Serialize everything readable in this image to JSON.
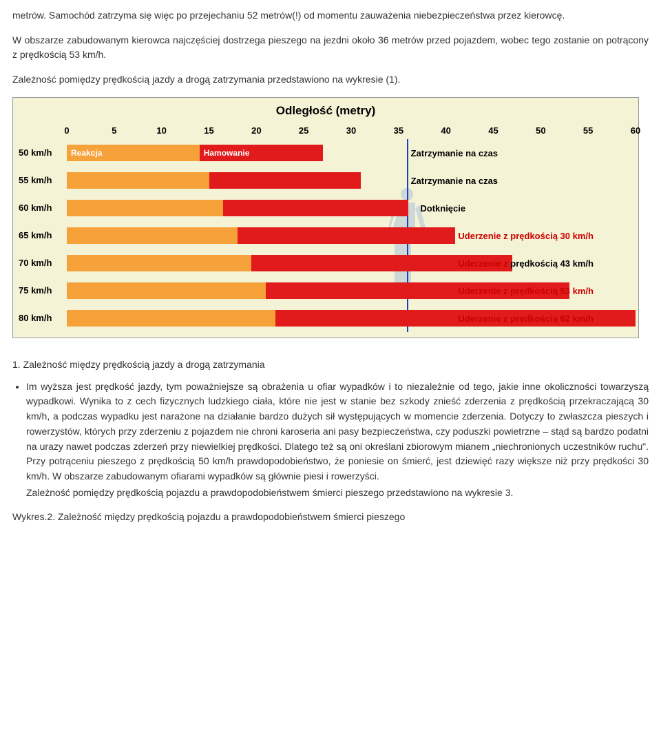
{
  "intro": {
    "p1": "metrów. Samochód zatrzyma się więc po przejechaniu 52 metrów(!) od momentu zauważenia niebezpieczeństwa przez kierowcę.",
    "p2": "W obszarze zabudowanym kierowca najczęściej dostrzega pieszego na jezdni około 36 metrów przed pojazdem, wobec tego zostanie on potrącony z prędkością 53 km/h.",
    "p3": "Zależność pomiędzy prędkością jazdy a drogą zatrzymania przedstawiono na  wykresie (1)."
  },
  "chart": {
    "title": "Odległość (metry)",
    "background_color": "#f5f3d6",
    "reaction_color": "#f7a13a",
    "brake_color": "#e11b1b",
    "safe_text_color": "#000000",
    "hit_text_color": "#cc0000",
    "pedestrian_color": "#9fb8d8",
    "vline_color": "#1a3fbf",
    "x_min": 0,
    "x_max": 60,
    "x_ticks": [
      0,
      5,
      10,
      15,
      20,
      25,
      30,
      35,
      40,
      45,
      50,
      55,
      60
    ],
    "pedestrian_x": 36,
    "rows": [
      {
        "speed": "50 km/h",
        "reaction_end": 14,
        "brake_end": 27,
        "reaction_label": "Reakcja",
        "brake_label": "Hamowanie",
        "end_text": "Zatrzymanie na czas",
        "end_x": 36,
        "end_color": "#000000"
      },
      {
        "speed": "55 km/h",
        "reaction_end": 15,
        "brake_end": 31,
        "end_text": "Zatrzymanie na czas",
        "end_x": 36,
        "end_color": "#000000"
      },
      {
        "speed": "60 km/h",
        "reaction_end": 16.5,
        "brake_end": 36,
        "end_text": "Dotknięcie",
        "end_x": 37,
        "end_color": "#000000"
      },
      {
        "speed": "65 km/h",
        "reaction_end": 18,
        "brake_end": 41,
        "end_text": "Uderzenie z prędkością 30 km/h",
        "end_x": 41,
        "end_color": "#cc0000"
      },
      {
        "speed": "70 km/h",
        "reaction_end": 19.5,
        "brake_end": 47,
        "end_text": "Uderzenie z prędkością 43 km/h",
        "end_x": 41,
        "end_color": "#cc0000",
        "mixed": true,
        "mixed_split": "Uderzenie z|prędkością 43 km/h"
      },
      {
        "speed": "75 km/h",
        "reaction_end": 21,
        "brake_end": 53,
        "end_text": "Uderzenie z prędkością 53 km/h",
        "end_x": 41,
        "end_color": "#cc0000"
      },
      {
        "speed": "80 km/h",
        "reaction_end": 22,
        "brake_end": 60,
        "end_text": "Uderzenie z prędkością 62 km/h",
        "end_x": 41,
        "end_color": "#cc0000"
      }
    ]
  },
  "caption1": "1. Zależność między prędkością jazdy a drogą zatrzymania",
  "bullet1": "Im wyższa jest prędkość jazdy, tym poważniejsze są obrażenia u ofiar wypadków i to niezależnie od tego, jakie inne okoliczności towarzyszą wypadkowi. Wynika to z cech fizycznych ludzkiego ciała, które nie jest w stanie bez szkody znieść zderzenia z prędkością przekraczającą 30 km/h, a podczas wypadku jest narażone na działanie bardzo dużych sił występujących w momencie zderzenia. Dotyczy to zwłaszcza pieszych i rowerzystów, których przy zderzeniu z pojazdem nie chroni karoseria ani pasy bezpieczeństwa, czy poduszki powietrzne – stąd są bardzo podatni na urazy nawet podczas zderzeń przy niewielkiej prędkości. Dlatego też są oni określani zbiorowym mianem „niechronionych uczestników ruchu\". Przy potrąceniu pieszego z prędkością 50 km/h prawdopodobieństwo, że poniesie on śmierć, jest dziewięć razy większe niż przy prędkości 30 km/h. W obszarze zabudowanym ofiarami wypadków są głównie piesi i rowerzyści.",
  "after_bullet": "Zależność pomiędzy prędkością pojazdu a prawdopodobieństwem śmierci pieszego przedstawiono na wykresie 3.",
  "caption2": "Wykres.2. Zależność między prędkością pojazdu a prawdopodobieństwem śmierci pieszego"
}
